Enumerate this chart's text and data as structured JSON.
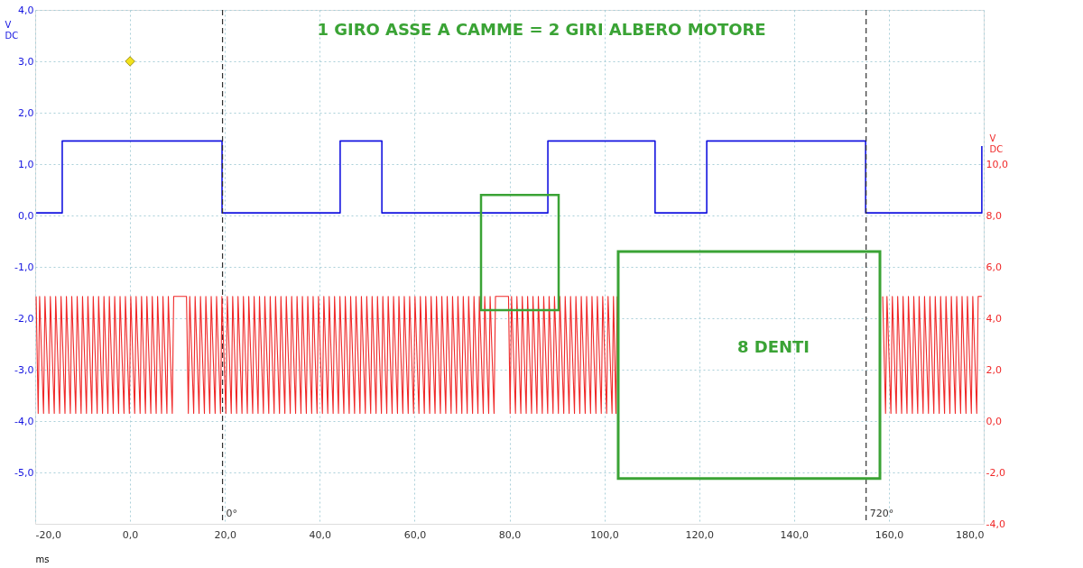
{
  "chart_data": {
    "type": "line",
    "title": "1 GIRO ASSE A CAMME = 2 GIRI ALBERO MOTORE",
    "xlabel": "ms",
    "ylabel": "V DC",
    "y2label": "V DC",
    "annotations": [
      "8 DENTI",
      {
        "text": "0°",
        "x": 19.5,
        "y": -5.8
      },
      {
        "text": "720°",
        "x": 155.2,
        "y": -5.8
      }
    ],
    "xlim": [
      -20,
      180
    ],
    "xticks": [
      {
        "value": -20,
        "label": "-20,0"
      },
      {
        "value": 0,
        "label": "0,0"
      },
      {
        "value": 20,
        "label": "20,0"
      },
      {
        "value": 40,
        "label": "40,0"
      },
      {
        "value": 60,
        "label": "60,0"
      },
      {
        "value": 80,
        "label": "80,0"
      },
      {
        "value": 100,
        "label": "100,0"
      },
      {
        "value": 120,
        "label": "120,0"
      },
      {
        "value": 140,
        "label": "140,0"
      },
      {
        "value": 160,
        "label": "160,0"
      },
      {
        "value": 180,
        "label": "180,0"
      }
    ],
    "ylim": [
      -6,
      4
    ],
    "yticks": [
      {
        "value": -5,
        "label": "-5,0"
      },
      {
        "value": -4,
        "label": "-4,0"
      },
      {
        "value": -3,
        "label": "-3,0"
      },
      {
        "value": -2,
        "label": "-2,0"
      },
      {
        "value": -1,
        "label": "-1,0"
      },
      {
        "value": 0,
        "label": "0,0"
      },
      {
        "value": 1,
        "label": "1,0"
      },
      {
        "value": 2,
        "label": "2,0"
      },
      {
        "value": 3,
        "label": "3,0"
      },
      {
        "value": 4,
        "label": "4,0"
      }
    ],
    "y2lim": [
      -4,
      16
    ],
    "y2ticks": [
      {
        "value": -4,
        "label": "-4,0"
      },
      {
        "value": -2,
        "label": "-2,0"
      },
      {
        "value": 0,
        "label": "0,0"
      },
      {
        "value": 2,
        "label": "2,0"
      },
      {
        "value": 4,
        "label": "4,0"
      },
      {
        "value": 6,
        "label": "6,0"
      },
      {
        "value": 8,
        "label": "8,0"
      },
      {
        "value": 10,
        "label": "10,0"
      }
    ],
    "grid": true,
    "series": [
      {
        "color": "#1414e0",
        "x": [
          -19.8,
          -14.3,
          -14.3,
          19.4,
          19.4,
          44.3,
          44.3,
          53.1,
          53.1,
          88.1,
          88.1,
          110.7,
          110.7,
          121.6,
          121.6,
          155.1,
          155.1,
          179.6,
          179.6
        ],
        "values": [
          0.05,
          0.05,
          1.45,
          1.45,
          0.05,
          0.05,
          1.45,
          1.45,
          0.05,
          0.05,
          1.45,
          1.45,
          0.05,
          0.05,
          1.45,
          1.45,
          0.05,
          0.05,
          1.35
        ]
      },
      {
        "color": "#f02828",
        "axis": "y2",
        "x": [
          -19.8,
          -19.37,
          -19.07,
          -18.24,
          -17.94,
          -17.11,
          -16.81,
          -15.98,
          -15.68,
          -14.85,
          -14.55,
          -13.72,
          -13.42,
          -12.59,
          -12.29,
          -11.45,
          -11.15,
          -10.32,
          -10.02,
          -9.19,
          -8.89,
          -8.06,
          -7.76,
          -6.93,
          -6.63,
          -5.8,
          -5.5,
          -4.67,
          -4.37,
          -3.54,
          -3.24,
          -2.41,
          -2.11,
          -1.28,
          -0.98,
          -0.15,
          0.15,
          0.98,
          1.28,
          2.12,
          2.42,
          3.25,
          3.55,
          4.38,
          4.68,
          5.51,
          5.81,
          6.64,
          6.94,
          7.77,
          8.07,
          8.9,
          9.2,
          11.9,
          12.29,
          12.59,
          13.42,
          13.72,
          14.55,
          14.85,
          15.68,
          15.98,
          16.81,
          17.11,
          17.94,
          18.24,
          19.07,
          19.37,
          20.21,
          20.51,
          21.34,
          21.64,
          22.47,
          22.77,
          23.6,
          23.9,
          24.73,
          25.03,
          25.86,
          26.16,
          26.99,
          27.29,
          28.12,
          28.42,
          29.25,
          29.55,
          30.38,
          30.68,
          31.51,
          31.81,
          32.64,
          32.94,
          33.78,
          34.08,
          34.91,
          35.21,
          36.04,
          36.34,
          37.17,
          37.47,
          38.3,
          38.6,
          39.43,
          39.73,
          40.56,
          40.86,
          41.69,
          41.99,
          42.82,
          43.12,
          43.95,
          44.25,
          45.08,
          45.38,
          46.21,
          46.51,
          47.34,
          47.64,
          48.48,
          48.78,
          49.61,
          49.91,
          50.74,
          51.04,
          51.87,
          52.17,
          53.0,
          53.3,
          54.13,
          54.43,
          55.26,
          55.56,
          56.39,
          56.69,
          57.52,
          57.82,
          58.65,
          58.95,
          59.78,
          60.08,
          60.91,
          61.21,
          62.05,
          62.35,
          63.18,
          63.48,
          64.31,
          64.61,
          65.44,
          65.74,
          66.57,
          66.87,
          67.7,
          68.0,
          68.83,
          69.13,
          69.96,
          70.26,
          71.09,
          71.39,
          72.22,
          72.52,
          73.35,
          73.65,
          74.48,
          74.78,
          75.62,
          75.92,
          76.75,
          77.05,
          79.8,
          80.14,
          80.44,
          81.27,
          81.57,
          82.4,
          82.7,
          83.53,
          83.83,
          84.66,
          84.96,
          85.79,
          86.09,
          86.92,
          87.22,
          88.06,
          88.36,
          89.19,
          89.49,
          90.32,
          90.62,
          91.45,
          91.75,
          92.58,
          92.88,
          93.71,
          94.01,
          94.84,
          95.14,
          95.97,
          96.27,
          97.1,
          97.4,
          98.23,
          98.53,
          99.36,
          99.66,
          100.49,
          100.79,
          101.63,
          101.93,
          102.45,
          102.7,
          130,
          158.7,
          159.3,
          159.6,
          160.43,
          160.73,
          161.56,
          161.86,
          162.69,
          162.99,
          163.82,
          164.12,
          164.95,
          165.25,
          166.08,
          166.38,
          167.22,
          167.52,
          168.35,
          168.65,
          169.48,
          169.78,
          170.61,
          170.91,
          171.74,
          172.04,
          172.87,
          173.17,
          174.0,
          174.3,
          175.13,
          175.43,
          176.26,
          176.56,
          177.39,
          177.69,
          178.53,
          178.83,
          179.6
        ],
        "values": [
          4.85,
          0.3,
          4.85,
          0.3,
          4.85,
          0.3,
          4.85,
          0.3,
          4.85,
          0.3,
          4.85,
          0.3,
          4.85,
          0.3,
          4.85,
          0.3,
          4.85,
          0.3,
          4.85,
          0.3,
          4.85,
          0.3,
          4.85,
          0.3,
          4.85,
          0.3,
          4.85,
          0.3,
          4.85,
          0.3,
          4.85,
          0.3,
          4.85,
          0.3,
          4.85,
          0.3,
          4.85,
          0.3,
          4.85,
          0.3,
          4.85,
          0.3,
          4.85,
          0.3,
          4.85,
          0.3,
          4.85,
          0.3,
          4.85,
          0.3,
          4.85,
          0.3,
          4.85,
          4.85,
          0.3,
          4.85,
          0.3,
          4.85,
          0.3,
          4.85,
          0.3,
          4.85,
          0.3,
          4.85,
          0.3,
          4.85,
          0.3,
          4.85,
          0.3,
          4.85,
          0.3,
          4.85,
          0.3,
          4.85,
          0.3,
          4.85,
          0.3,
          4.85,
          0.3,
          4.85,
          0.3,
          4.85,
          0.3,
          4.85,
          0.3,
          4.85,
          0.3,
          4.85,
          0.3,
          4.85,
          0.3,
          4.85,
          0.3,
          4.85,
          0.3,
          4.85,
          0.3,
          4.85,
          0.3,
          4.85,
          0.3,
          4.85,
          0.3,
          4.85,
          0.3,
          4.85,
          0.3,
          4.85,
          0.3,
          4.85,
          0.3,
          4.85,
          0.3,
          4.85,
          0.3,
          4.85,
          0.3,
          4.85,
          0.3,
          4.85,
          0.3,
          4.85,
          0.3,
          4.85,
          0.3,
          4.85,
          0.3,
          4.85,
          0.3,
          4.85,
          0.3,
          4.85,
          0.3,
          4.85,
          0.3,
          4.85,
          0.3,
          4.85,
          0.3,
          4.85,
          0.3,
          4.85,
          0.3,
          4.85,
          0.3,
          4.85,
          0.3,
          4.85,
          0.3,
          4.85,
          0.3,
          4.85,
          0.3,
          4.85,
          0.3,
          4.85,
          0.3,
          4.85,
          0.3,
          4.85,
          0.3,
          4.85,
          0.3,
          4.85,
          0.3,
          4.85,
          0.3,
          4.85,
          0.3,
          4.85,
          4.85,
          0.3,
          4.85,
          0.3,
          4.85,
          0.3,
          4.85,
          0.3,
          4.85,
          0.3,
          4.85,
          0.3,
          4.85,
          0.3,
          4.85,
          0.3,
          4.85,
          0.3,
          4.85,
          0.3,
          4.85,
          0.3,
          4.85,
          0.3,
          4.85,
          0.3,
          4.85,
          0.3,
          4.85,
          0.3,
          4.85,
          0.3,
          4.85,
          0.3,
          4.85,
          0.3,
          4.85,
          0.3,
          4.85,
          0.3,
          4.85,
          0.3,
          4.85,
          null,
          4.85,
          0.3,
          4.85,
          0.3,
          4.85,
          0.3,
          4.85,
          0.3,
          4.85,
          0.3,
          4.85,
          0.3,
          4.85,
          0.3,
          4.85,
          0.3,
          4.85,
          0.3,
          4.85,
          0.3,
          4.85,
          0.3,
          4.85,
          0.3,
          4.85,
          0.3,
          4.85,
          0.3,
          4.85,
          0.3,
          4.85,
          0.3,
          4.85,
          0.3,
          4.85,
          0.3,
          4.85,
          4.85
        ]
      },
      {
        "type": "scatter",
        "marker": "diamond",
        "color": "#f2e21c",
        "x": [
          0
        ],
        "values": [
          3.0
        ]
      }
    ],
    "ref_lines": [
      {
        "axis": "x",
        "value": 19.5,
        "line_style": "dashed",
        "color": "#303030"
      },
      {
        "axis": "x",
        "value": 155.2,
        "line_style": "dashed",
        "color": "#303030"
      }
    ]
  }
}
